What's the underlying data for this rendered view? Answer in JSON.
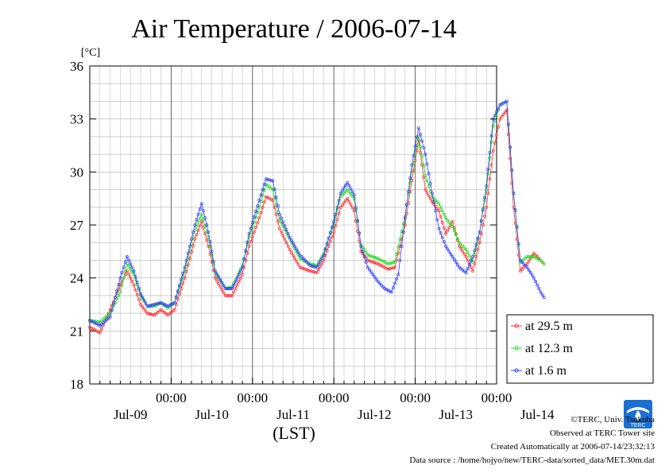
{
  "credits": {
    "copyright": "©TERC, Univ. Tsukuba",
    "site": "Observed at TERC Tower site",
    "created": "Created Automatically at 2006-07-14/23:32:13",
    "source": "Data source : /home/hojyo/new/TERC-data/sorted_data/MET.30m.dat"
  },
  "logo": {
    "icon": "terc-logo-icon",
    "text": "TERC",
    "color": "#1a6fd1"
  },
  "chart_data": {
    "type": "line",
    "title": "Air Temperature / 2006-07-14",
    "ylabel": "[°C]",
    "xlabel": "(LST)",
    "ylim": [
      18,
      36
    ],
    "yticks": [
      18,
      21,
      24,
      27,
      30,
      33,
      36
    ],
    "xlim_hours": [
      -14,
      106
    ],
    "x_time_ticks": [
      {
        "h": 10,
        "label": "00:00"
      },
      {
        "h": 34,
        "label": "00:00"
      },
      {
        "h": 58,
        "label": "00:00"
      },
      {
        "h": 82,
        "label": "00:00"
      },
      {
        "h": 106,
        "label": "00:00"
      }
    ],
    "x_date_labels": [
      {
        "h": -2,
        "label": "Jul-09"
      },
      {
        "h": 22,
        "label": "Jul-10"
      },
      {
        "h": 46,
        "label": "Jul-11"
      },
      {
        "h": 70,
        "label": "Jul-12"
      },
      {
        "h": 94,
        "label": "Jul-13"
      },
      {
        "h": 118,
        "label": "Jul-14"
      }
    ],
    "grid": true,
    "legend_position": "bottom-right",
    "series": [
      {
        "name": "at 29.5 m",
        "color": "#ff3030",
        "points": [
          [
            -14,
            21.2
          ],
          [
            -11,
            20.9
          ],
          [
            -8,
            22.2
          ],
          [
            -5,
            23.6
          ],
          [
            -3,
            24.4
          ],
          [
            -1,
            23.6
          ],
          [
            1,
            22.5
          ],
          [
            3,
            22.0
          ],
          [
            5,
            21.9
          ],
          [
            7,
            22.2
          ],
          [
            9,
            21.9
          ],
          [
            11,
            22.2
          ],
          [
            14,
            24.0
          ],
          [
            17,
            26.2
          ],
          [
            19,
            27.2
          ],
          [
            21,
            25.8
          ],
          [
            23,
            24.0
          ],
          [
            26,
            23.0
          ],
          [
            28,
            23.0
          ],
          [
            31,
            24.2
          ],
          [
            33,
            25.8
          ],
          [
            36,
            27.4
          ],
          [
            38,
            28.6
          ],
          [
            40,
            28.4
          ],
          [
            42,
            26.8
          ],
          [
            45,
            25.6
          ],
          [
            48,
            24.6
          ],
          [
            51,
            24.4
          ],
          [
            53,
            24.3
          ],
          [
            55,
            25.0
          ],
          [
            58,
            26.6
          ],
          [
            60,
            28.0
          ],
          [
            62,
            28.5
          ],
          [
            64,
            27.8
          ],
          [
            66,
            25.5
          ],
          [
            68,
            25.0
          ],
          [
            71,
            24.8
          ],
          [
            74,
            24.5
          ],
          [
            76,
            24.6
          ],
          [
            79,
            27.0
          ],
          [
            81,
            29.5
          ],
          [
            83,
            31.8
          ],
          [
            85,
            29.0
          ],
          [
            87,
            28.3
          ],
          [
            89,
            27.8
          ],
          [
            91,
            26.5
          ],
          [
            93,
            27.2
          ],
          [
            95,
            25.8
          ],
          [
            97,
            25.2
          ],
          [
            99,
            24.4
          ],
          [
            101,
            26.0
          ],
          [
            103,
            28.0
          ],
          [
            105,
            31.2
          ],
          [
            107,
            33.0
          ],
          [
            109,
            33.5
          ],
          [
            111,
            28.0
          ],
          [
            113,
            24.4
          ],
          [
            115,
            24.8
          ],
          [
            117,
            25.4
          ],
          [
            119,
            25.0
          ],
          [
            120,
            24.8
          ]
        ]
      },
      {
        "name": "at 12.3 m",
        "color": "#22dd22",
        "points": [
          [
            -14,
            21.6
          ],
          [
            -11,
            21.5
          ],
          [
            -8,
            22.0
          ],
          [
            -5,
            23.2
          ],
          [
            -3,
            24.8
          ],
          [
            -1,
            24.2
          ],
          [
            1,
            23.0
          ],
          [
            3,
            22.4
          ],
          [
            5,
            22.4
          ],
          [
            7,
            22.6
          ],
          [
            9,
            22.3
          ],
          [
            11,
            22.6
          ],
          [
            14,
            24.4
          ],
          [
            17,
            26.7
          ],
          [
            19,
            27.6
          ],
          [
            21,
            26.3
          ],
          [
            23,
            24.3
          ],
          [
            26,
            23.4
          ],
          [
            28,
            23.5
          ],
          [
            31,
            24.7
          ],
          [
            33,
            26.3
          ],
          [
            36,
            28.0
          ],
          [
            38,
            29.3
          ],
          [
            40,
            29.0
          ],
          [
            42,
            27.3
          ],
          [
            45,
            26.2
          ],
          [
            48,
            25.1
          ],
          [
            51,
            24.8
          ],
          [
            53,
            24.7
          ],
          [
            55,
            25.4
          ],
          [
            58,
            27.1
          ],
          [
            60,
            28.6
          ],
          [
            62,
            29.0
          ],
          [
            64,
            28.5
          ],
          [
            66,
            25.9
          ],
          [
            68,
            25.3
          ],
          [
            71,
            25.1
          ],
          [
            74,
            24.8
          ],
          [
            76,
            24.9
          ],
          [
            79,
            27.5
          ],
          [
            81,
            30.0
          ],
          [
            83,
            32.0
          ],
          [
            85,
            29.8
          ],
          [
            87,
            28.6
          ],
          [
            89,
            28.2
          ],
          [
            91,
            27.4
          ],
          [
            93,
            26.9
          ],
          [
            95,
            26.0
          ],
          [
            97,
            25.6
          ],
          [
            99,
            24.9
          ],
          [
            101,
            26.6
          ],
          [
            103,
            29.0
          ],
          [
            105,
            32.6
          ],
          [
            107,
            33.8
          ],
          [
            109,
            34.0
          ],
          [
            111,
            28.8
          ],
          [
            113,
            24.9
          ],
          [
            115,
            25.2
          ],
          [
            117,
            25.2
          ],
          [
            119,
            25.0
          ],
          [
            120,
            24.8
          ]
        ]
      },
      {
        "name": "at 1.6 m",
        "color": "#3040ff",
        "points": [
          [
            -14,
            21.6
          ],
          [
            -11,
            21.3
          ],
          [
            -8,
            21.8
          ],
          [
            -5,
            24.0
          ],
          [
            -3,
            25.2
          ],
          [
            -1,
            24.4
          ],
          [
            1,
            23.1
          ],
          [
            3,
            22.4
          ],
          [
            5,
            22.5
          ],
          [
            7,
            22.6
          ],
          [
            9,
            22.4
          ],
          [
            11,
            22.6
          ],
          [
            14,
            24.6
          ],
          [
            17,
            27.0
          ],
          [
            19,
            28.2
          ],
          [
            21,
            26.6
          ],
          [
            23,
            24.4
          ],
          [
            26,
            23.4
          ],
          [
            28,
            23.4
          ],
          [
            31,
            24.6
          ],
          [
            33,
            26.5
          ],
          [
            36,
            28.4
          ],
          [
            38,
            29.6
          ],
          [
            40,
            29.5
          ],
          [
            42,
            27.6
          ],
          [
            45,
            26.3
          ],
          [
            48,
            25.3
          ],
          [
            51,
            24.7
          ],
          [
            53,
            24.6
          ],
          [
            55,
            25.3
          ],
          [
            58,
            27.2
          ],
          [
            60,
            28.8
          ],
          [
            62,
            29.4
          ],
          [
            64,
            28.7
          ],
          [
            66,
            25.8
          ],
          [
            68,
            24.6
          ],
          [
            71,
            23.8
          ],
          [
            73,
            23.4
          ],
          [
            75,
            23.2
          ],
          [
            77,
            24.2
          ],
          [
            79,
            27.4
          ],
          [
            81,
            30.4
          ],
          [
            83,
            32.5
          ],
          [
            85,
            31.0
          ],
          [
            87,
            28.8
          ],
          [
            89,
            26.8
          ],
          [
            91,
            25.8
          ],
          [
            93,
            25.2
          ],
          [
            95,
            24.6
          ],
          [
            97,
            24.3
          ],
          [
            99,
            25.2
          ],
          [
            101,
            26.6
          ],
          [
            103,
            29.2
          ],
          [
            105,
            33.0
          ],
          [
            107,
            33.8
          ],
          [
            109,
            34.0
          ],
          [
            111,
            28.8
          ],
          [
            113,
            25.0
          ],
          [
            115,
            24.6
          ],
          [
            117,
            24.0
          ],
          [
            119,
            23.2
          ],
          [
            120,
            22.9
          ]
        ]
      }
    ]
  }
}
